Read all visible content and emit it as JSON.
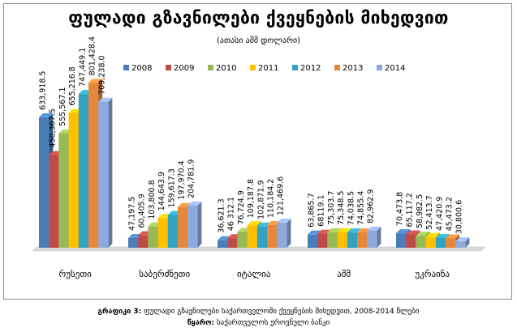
{
  "chart_data": {
    "type": "bar",
    "title": "ფულადი გზავნილები ქვეყნების მიხედვით",
    "subtitle": "(ათასი აშშ დოლარი)",
    "xlabel": "",
    "ylabel": "",
    "legend_position": "top",
    "grid": false,
    "categories": [
      "რუსეთი",
      "საბერძნეთი",
      "იტალია",
      "აშშ",
      "უკრაინა"
    ],
    "series": [
      {
        "name": "2008",
        "color": "#4a7ebb",
        "values": [
          633918.5,
          47197.5,
          36621.3,
          63865.7,
          70473.8
        ]
      },
      {
        "name": "2009",
        "color": "#be4b48",
        "values": [
          450367.5,
          60405.9,
          46312.1,
          68119.1,
          65117.2
        ]
      },
      {
        "name": "2010",
        "color": "#98b954",
        "values": [
          555567.1,
          103800.8,
          76724.9,
          75303.7,
          58982.5
        ]
      },
      {
        "name": "2011",
        "color": "#ffc000",
        "values": [
          655216.8,
          144643.9,
          109187.8,
          75348.5,
          52413.7
        ]
      },
      {
        "name": "2012",
        "color": "#31a3c0",
        "values": [
          747449.1,
          159617.3,
          102871.9,
          74038.5,
          47420.9
        ]
      },
      {
        "name": "2013",
        "color": "#e6873b",
        "values": [
          801428.4,
          197970.4,
          110184.2,
          74855.4,
          45473.2
        ]
      },
      {
        "name": "2014",
        "color": "#8ea9db",
        "values": [
          709238.0,
          204781.9,
          121469.6,
          82962.9,
          30800.6
        ]
      }
    ],
    "data_labels": [
      [
        "633,918.5",
        "47,197.5",
        "36,621.3",
        "63,865.7",
        "70,473.8"
      ],
      [
        "450,367.5",
        "60,405.9",
        "46 312.1",
        "68119.1",
        "65,117.2"
      ],
      [
        "555,567.1",
        "103,800.8",
        "76,724.9",
        "75,303.7",
        "58,982.5"
      ],
      [
        "655,216.8",
        "144,643.9",
        "109,187.8",
        "75,348.5",
        "52,413.7"
      ],
      [
        "747,449.1",
        "159,617.3",
        "102,871.9",
        "74,038.5",
        "47,420.9"
      ],
      [
        "801,428.4",
        "197,970.4",
        "110,184.2",
        "74,855.4",
        "45,473.2"
      ],
      [
        "709,238.0",
        "204,781.9",
        "121,469.6",
        "82,962.9",
        "30,800.6"
      ]
    ],
    "ylim": [
      0,
      850000
    ]
  },
  "caption": {
    "line1_label": "გრაფიკი 3:",
    "line1_text": "ფულადი გზავნილები საქართველოში ქვეყნების მიხედვით, 2008-2014 წლები",
    "line2_label": "წყარო:",
    "line2_text": "საქართველოს ეროვნული ბანკი"
  }
}
